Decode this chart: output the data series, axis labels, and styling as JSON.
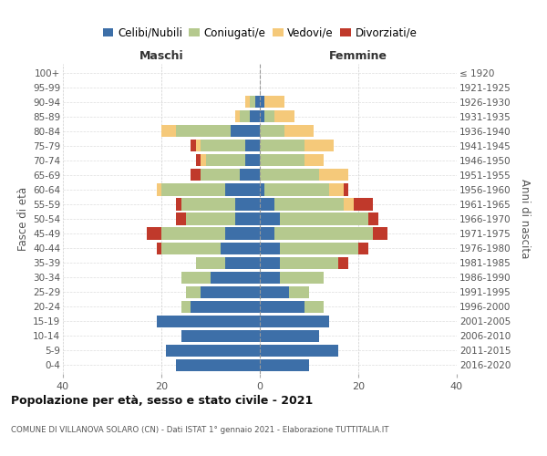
{
  "age_groups": [
    "0-4",
    "5-9",
    "10-14",
    "15-19",
    "20-24",
    "25-29",
    "30-34",
    "35-39",
    "40-44",
    "45-49",
    "50-54",
    "55-59",
    "60-64",
    "65-69",
    "70-74",
    "75-79",
    "80-84",
    "85-89",
    "90-94",
    "95-99",
    "100+"
  ],
  "birth_years": [
    "2016-2020",
    "2011-2015",
    "2006-2010",
    "2001-2005",
    "1996-2000",
    "1991-1995",
    "1986-1990",
    "1981-1985",
    "1976-1980",
    "1971-1975",
    "1966-1970",
    "1961-1965",
    "1956-1960",
    "1951-1955",
    "1946-1950",
    "1941-1945",
    "1936-1940",
    "1931-1935",
    "1926-1930",
    "1921-1925",
    "≤ 1920"
  ],
  "colors": {
    "celibe": "#3d6fa8",
    "coniugato": "#b5c98e",
    "vedovo": "#f5c97a",
    "divorziato": "#c0392b"
  },
  "maschi": {
    "celibe": [
      17,
      19,
      16,
      21,
      14,
      12,
      10,
      7,
      8,
      7,
      5,
      5,
      7,
      4,
      3,
      3,
      6,
      2,
      1,
      0,
      0
    ],
    "coniugato": [
      0,
      0,
      0,
      0,
      2,
      3,
      6,
      6,
      12,
      13,
      10,
      11,
      13,
      8,
      8,
      9,
      11,
      2,
      1,
      0,
      0
    ],
    "vedovo": [
      0,
      0,
      0,
      0,
      0,
      0,
      0,
      0,
      0,
      0,
      0,
      0,
      1,
      0,
      1,
      1,
      3,
      1,
      1,
      0,
      0
    ],
    "divorziato": [
      0,
      0,
      0,
      0,
      0,
      0,
      0,
      0,
      1,
      3,
      2,
      1,
      0,
      2,
      1,
      1,
      0,
      0,
      0,
      0,
      0
    ]
  },
  "femmine": {
    "nubile": [
      10,
      16,
      12,
      14,
      9,
      6,
      4,
      4,
      4,
      3,
      4,
      3,
      1,
      0,
      0,
      0,
      0,
      1,
      1,
      0,
      0
    ],
    "coniugata": [
      0,
      0,
      0,
      0,
      4,
      4,
      9,
      12,
      16,
      20,
      18,
      14,
      13,
      12,
      9,
      9,
      5,
      2,
      0,
      0,
      0
    ],
    "vedova": [
      0,
      0,
      0,
      0,
      0,
      0,
      0,
      0,
      0,
      0,
      0,
      2,
      3,
      6,
      4,
      6,
      6,
      4,
      4,
      0,
      0
    ],
    "divorziata": [
      0,
      0,
      0,
      0,
      0,
      0,
      0,
      2,
      2,
      3,
      2,
      4,
      1,
      0,
      0,
      0,
      0,
      0,
      0,
      0,
      0
    ]
  },
  "xlim": 40,
  "title": "Popolazione per età, sesso e stato civile - 2021",
  "subtitle": "COMUNE DI VILLANOVA SOLARO (CN) - Dati ISTAT 1° gennaio 2021 - Elaborazione TUTTITALIA.IT",
  "ylabel_left": "Fasce di età",
  "ylabel_right": "Anni di nascita",
  "xlabel_left": "Maschi",
  "xlabel_right": "Femmine"
}
